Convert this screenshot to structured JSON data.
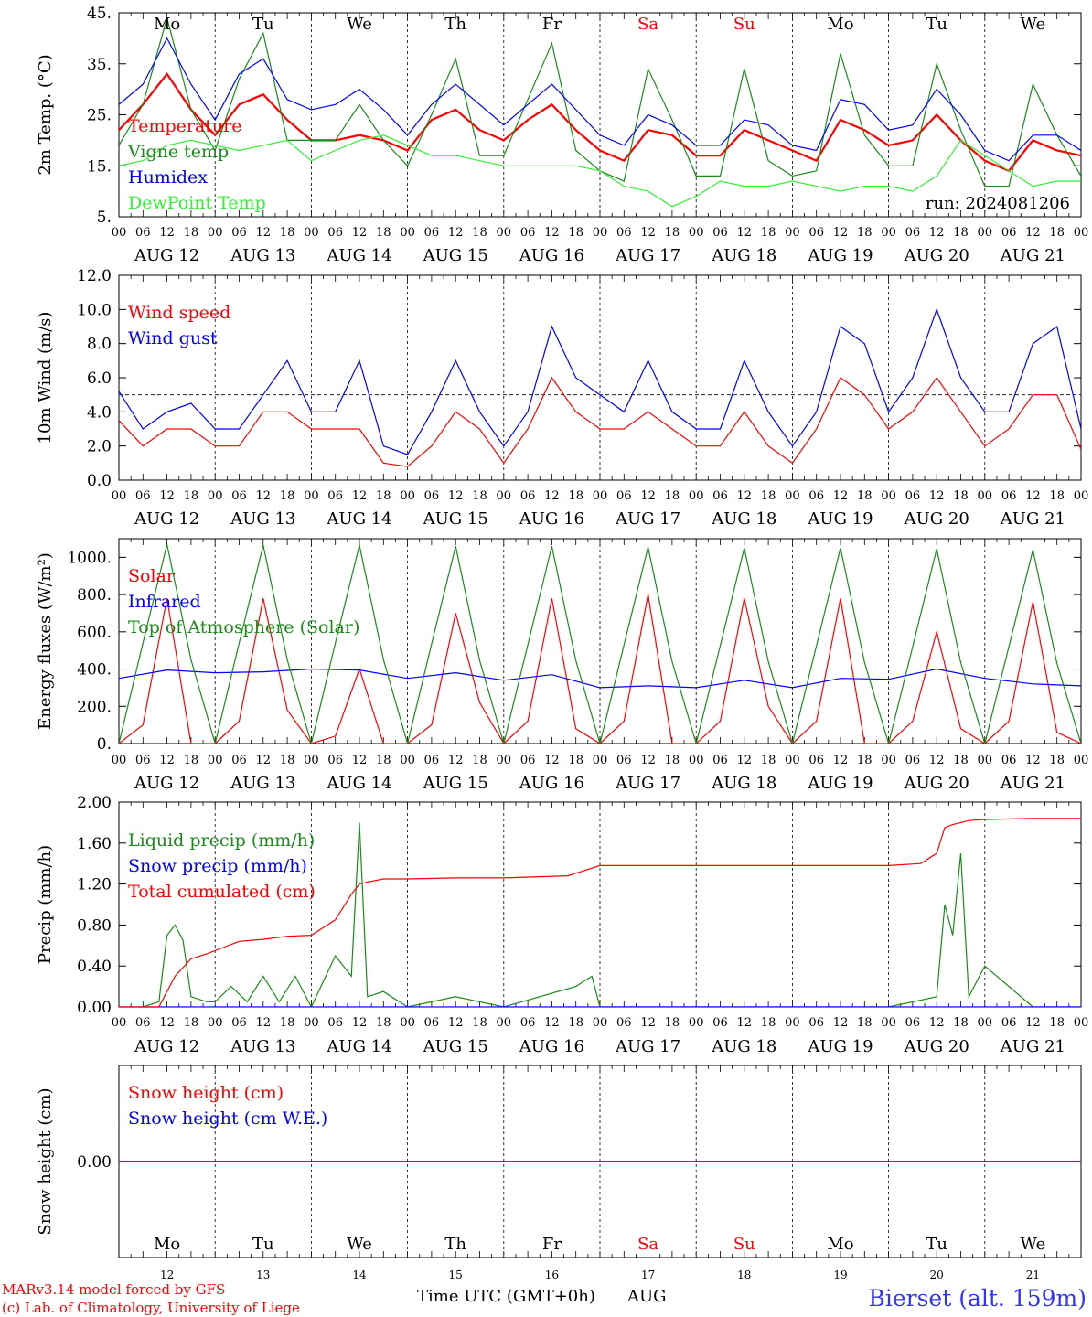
{
  "days": {
    "weekdays": [
      "Mo",
      "Tu",
      "We",
      "Th",
      "Fr",
      "Sa",
      "Su",
      "Mo",
      "Tu",
      "We"
    ],
    "weekend_flags": [
      false,
      false,
      false,
      false,
      false,
      true,
      true,
      false,
      false,
      false
    ],
    "date_labels": [
      "AUG 12",
      "AUG 13",
      "AUG 14",
      "AUG 15",
      "AUG 16",
      "AUG 17",
      "AUG 18",
      "AUG 19",
      "AUG 20",
      "AUG 21"
    ],
    "day_numbers": [
      "12",
      "13",
      "14",
      "15",
      "16",
      "17",
      "18",
      "19",
      "20",
      "21"
    ],
    "hour_ticks": [
      "00",
      "06",
      "12",
      "18"
    ],
    "end_tick": "00"
  },
  "colors": {
    "red": "#ff0000",
    "green": "#1a8a1a",
    "blue": "#0000ff",
    "lime": "#33ee33",
    "weekend": "#ff0000",
    "purple": "#800080"
  },
  "footer": {
    "credit_line1": "MARv3.14 model forced by GFS",
    "credit_line2": "(c) Lab. of Climatology, University of Liege",
    "xlabel": "Time UTC (GMT+0h)",
    "month": "AUG",
    "station": "Bierset (alt. 159m)"
  },
  "chart_data": [
    {
      "type": "line",
      "ylabel": "2m Temp. (°C)",
      "yticks": [
        "45.",
        "35.",
        "25.",
        "15.",
        "5."
      ],
      "ylim": [
        5,
        45
      ],
      "run_label": "run: 2024081206",
      "grid": "vertical day lines",
      "legend_placement": "left",
      "series": [
        {
          "name": "Temperature",
          "color": "red",
          "x": [
            0,
            6,
            12,
            18,
            24,
            30,
            36,
            42,
            48,
            54,
            60,
            66,
            72,
            78,
            84,
            90,
            96,
            102,
            108,
            114,
            120,
            126,
            132,
            138,
            144,
            150,
            156,
            162,
            168,
            174,
            180,
            186,
            192,
            198,
            204,
            210,
            216,
            222,
            228,
            234,
            240
          ],
          "values": [
            22,
            27,
            33,
            26,
            21,
            27,
            29,
            24,
            20,
            20,
            21,
            20,
            18,
            24,
            26,
            22,
            20,
            24,
            27,
            22,
            18,
            16,
            22,
            21,
            17,
            17,
            22,
            20,
            18,
            16,
            24,
            22,
            19,
            20,
            25,
            20,
            16,
            14,
            20,
            18,
            17
          ]
        },
        {
          "name": "Vigne temp",
          "color": "green",
          "x": [
            0,
            6,
            12,
            18,
            24,
            30,
            36,
            42,
            48,
            54,
            60,
            66,
            72,
            78,
            84,
            90,
            96,
            102,
            108,
            114,
            120,
            126,
            132,
            138,
            144,
            150,
            156,
            162,
            168,
            174,
            180,
            186,
            192,
            198,
            204,
            210,
            216,
            222,
            228,
            234,
            240
          ],
          "values": [
            19,
            27,
            44,
            26,
            18,
            32,
            41,
            20,
            20,
            20,
            27,
            20,
            15,
            25,
            36,
            17,
            17,
            28,
            39,
            18,
            14,
            12,
            34,
            24,
            13,
            13,
            34,
            16,
            13,
            14,
            37,
            21,
            15,
            15,
            35,
            22,
            11,
            11,
            31,
            21,
            13
          ]
        },
        {
          "name": "Humidex",
          "color": "blue",
          "x": [
            0,
            6,
            12,
            18,
            24,
            30,
            36,
            42,
            48,
            54,
            60,
            66,
            72,
            78,
            84,
            90,
            96,
            102,
            108,
            114,
            120,
            126,
            132,
            138,
            144,
            150,
            156,
            162,
            168,
            174,
            180,
            186,
            192,
            198,
            204,
            210,
            216,
            222,
            228,
            234,
            240
          ],
          "values": [
            27,
            31,
            40,
            31,
            24,
            33,
            36,
            28,
            26,
            27,
            30,
            26,
            21,
            27,
            31,
            27,
            23,
            27,
            31,
            26,
            21,
            19,
            25,
            23,
            19,
            19,
            24,
            23,
            19,
            18,
            28,
            27,
            22,
            23,
            30,
            25,
            18,
            16,
            21,
            21,
            18
          ]
        },
        {
          "name": "DewPoint Temp",
          "color": "lime",
          "x": [
            0,
            6,
            12,
            18,
            24,
            30,
            36,
            42,
            48,
            54,
            60,
            66,
            72,
            78,
            84,
            90,
            96,
            102,
            108,
            114,
            120,
            126,
            132,
            138,
            144,
            150,
            156,
            162,
            168,
            174,
            180,
            186,
            192,
            198,
            204,
            210,
            216,
            222,
            228,
            234,
            240
          ],
          "values": [
            15,
            16,
            19,
            20,
            19,
            18,
            19,
            20,
            16,
            18,
            20,
            21,
            19,
            17,
            17,
            16,
            15,
            15,
            15,
            15,
            14,
            11,
            10,
            7,
            9,
            12,
            11,
            11,
            12,
            11,
            10,
            11,
            11,
            10,
            13,
            20,
            17,
            14,
            11,
            12,
            12
          ]
        }
      ]
    },
    {
      "type": "line",
      "ylabel": "10m Wind (m/s)",
      "yticks": [
        "12.0",
        "10.0",
        "8.0",
        "6.0",
        "4.0",
        "2.0",
        "0.0"
      ],
      "ylim": [
        0,
        12
      ],
      "reference_line": 5,
      "legend_placement": "left",
      "series": [
        {
          "name": "Wind speed",
          "color": "red",
          "x": [
            0,
            6,
            12,
            18,
            24,
            30,
            36,
            42,
            48,
            54,
            60,
            66,
            72,
            78,
            84,
            90,
            96,
            102,
            108,
            114,
            120,
            126,
            132,
            138,
            144,
            150,
            156,
            162,
            168,
            174,
            180,
            186,
            192,
            198,
            204,
            210,
            216,
            222,
            228,
            234,
            240
          ],
          "values": [
            3.5,
            2,
            3,
            3,
            2,
            2,
            4,
            4,
            3,
            3,
            3,
            1,
            0.8,
            2,
            4,
            3,
            1,
            3,
            6,
            4,
            3,
            3,
            4,
            3,
            2,
            2,
            4,
            2,
            1,
            3,
            6,
            5,
            3,
            4,
            6,
            4,
            2,
            3,
            5,
            5,
            1.8
          ]
        },
        {
          "name": "Wind gust",
          "color": "blue",
          "x": [
            0,
            6,
            12,
            18,
            24,
            30,
            36,
            42,
            48,
            54,
            60,
            66,
            72,
            78,
            84,
            90,
            96,
            102,
            108,
            114,
            120,
            126,
            132,
            138,
            144,
            150,
            156,
            162,
            168,
            174,
            180,
            186,
            192,
            198,
            204,
            210,
            216,
            222,
            228,
            234,
            240
          ],
          "values": [
            5.2,
            3,
            4,
            4.5,
            3,
            3,
            5,
            7,
            4,
            4,
            7,
            2,
            1.5,
            4,
            7,
            4,
            2,
            4,
            9,
            6,
            5,
            4,
            7,
            4,
            3,
            3,
            7,
            4,
            2,
            4,
            9,
            8,
            4,
            6,
            10,
            6,
            4,
            4,
            8,
            9,
            3
          ]
        }
      ]
    },
    {
      "type": "line",
      "ylabel": "Energy fluxes (W/m²)",
      "yticks": [
        "1000.",
        "800.",
        "600.",
        "400.",
        "200.",
        "0."
      ],
      "ylim": [
        0,
        1100
      ],
      "legend_placement": "left",
      "series": [
        {
          "name": "Solar",
          "color": "red",
          "x": [
            0,
            6,
            12,
            18,
            24,
            30,
            36,
            42,
            48,
            54,
            60,
            66,
            72,
            78,
            84,
            90,
            96,
            102,
            108,
            114,
            120,
            126,
            132,
            138,
            144,
            150,
            156,
            162,
            168,
            174,
            180,
            186,
            192,
            198,
            204,
            210,
            216,
            222,
            228,
            234,
            240
          ],
          "values": [
            0,
            100,
            780,
            0,
            0,
            120,
            780,
            180,
            0,
            40,
            400,
            0,
            0,
            100,
            700,
            220,
            0,
            120,
            780,
            80,
            0,
            120,
            800,
            0,
            0,
            120,
            780,
            200,
            0,
            120,
            780,
            0,
            0,
            120,
            600,
            80,
            0,
            120,
            760,
            60,
            0
          ]
        },
        {
          "name": "Infrared",
          "color": "blue",
          "x": [
            0,
            12,
            24,
            36,
            48,
            60,
            72,
            84,
            96,
            108,
            120,
            132,
            144,
            156,
            168,
            180,
            192,
            204,
            216,
            228,
            240
          ],
          "values": [
            350,
            395,
            380,
            385,
            400,
            395,
            350,
            380,
            340,
            370,
            300,
            310,
            300,
            340,
            300,
            350,
            345,
            400,
            350,
            320,
            310
          ]
        },
        {
          "name": "Top of Atmosphere (Solar)",
          "color": "green",
          "x": [
            0,
            6,
            12,
            18,
            24,
            30,
            36,
            42,
            48,
            54,
            60,
            66,
            72,
            78,
            84,
            90,
            96,
            102,
            108,
            114,
            120,
            126,
            132,
            138,
            144,
            150,
            156,
            162,
            168,
            174,
            180,
            186,
            192,
            198,
            204,
            210,
            216,
            222,
            228,
            234,
            240
          ],
          "values": [
            0,
            540,
            1070,
            450,
            0,
            540,
            1065,
            450,
            0,
            540,
            1065,
            450,
            0,
            535,
            1060,
            445,
            0,
            530,
            1060,
            445,
            0,
            530,
            1055,
            440,
            0,
            525,
            1050,
            440,
            0,
            525,
            1050,
            435,
            0,
            520,
            1045,
            435,
            0,
            520,
            1040,
            430,
            0
          ]
        }
      ]
    },
    {
      "type": "line",
      "ylabel": "Precip (mm/h)",
      "yticks": [
        "2.00",
        "1.60",
        "1.20",
        "0.80",
        "0.40",
        "0.00"
      ],
      "ylim": [
        0,
        2
      ],
      "legend_placement": "left",
      "series": [
        {
          "name": "Liquid precip (mm/h)",
          "color": "green",
          "x": [
            0,
            6,
            10,
            12,
            14,
            16,
            18,
            22,
            24,
            28,
            32,
            36,
            40,
            44,
            48,
            54,
            58,
            60,
            62,
            66,
            72,
            84,
            96,
            114,
            118,
            120,
            122,
            132,
            144,
            168,
            192,
            204,
            206,
            208,
            210,
            212,
            216,
            228,
            240
          ],
          "values": [
            0,
            0,
            0.05,
            0.7,
            0.8,
            0.65,
            0.1,
            0.05,
            0.05,
            0.2,
            0.05,
            0.3,
            0.05,
            0.3,
            0,
            0.5,
            0.3,
            1.8,
            0.1,
            0.15,
            0,
            0.1,
            0,
            0.2,
            0.3,
            0,
            0,
            0,
            0,
            0,
            0,
            0.1,
            1.0,
            0.7,
            1.5,
            0.1,
            0.4,
            0,
            0
          ]
        },
        {
          "name": "Snow precip (mm/h)",
          "color": "blue",
          "x": [
            0,
            240
          ],
          "values": [
            0,
            0
          ]
        },
        {
          "name": "Total cumulated (cm)",
          "color": "red",
          "x": [
            0,
            10,
            14,
            18,
            22,
            26,
            30,
            36,
            42,
            48,
            54,
            58,
            60,
            62,
            66,
            72,
            84,
            96,
            112,
            120,
            126,
            132,
            144,
            168,
            192,
            200,
            204,
            206,
            208,
            210,
            212,
            216,
            228,
            240
          ],
          "values": [
            0,
            0,
            0.3,
            0.47,
            0.52,
            0.58,
            0.64,
            0.66,
            0.69,
            0.7,
            0.85,
            1.1,
            1.2,
            1.22,
            1.25,
            1.25,
            1.26,
            1.26,
            1.28,
            1.38,
            1.38,
            1.38,
            1.38,
            1.38,
            1.38,
            1.4,
            1.5,
            1.75,
            1.78,
            1.8,
            1.82,
            1.83,
            1.84,
            1.84
          ]
        }
      ]
    },
    {
      "type": "line",
      "ylabel": "Snow height (cm)",
      "yticks": [
        "0.00"
      ],
      "ylim": [
        -1,
        1
      ],
      "legend_placement": "left",
      "series": [
        {
          "name": "Snow height (cm)",
          "color": "red",
          "x": [
            0,
            240
          ],
          "values": [
            0,
            0
          ]
        },
        {
          "name": "Snow height (cm W.E.)",
          "color": "blue",
          "x": [
            0,
            240
          ],
          "values": [
            0,
            0
          ]
        }
      ]
    }
  ]
}
